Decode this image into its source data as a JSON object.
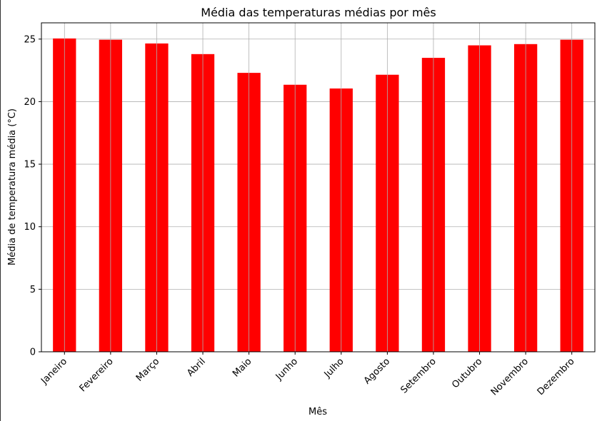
{
  "chart_data": {
    "type": "bar",
    "title": "Média das temperaturas médias por mês",
    "xlabel": "Mês",
    "ylabel": "Média de temperatura média (°C)",
    "categories": [
      "Janeiro",
      "Fevereiro",
      "Março",
      "Abril",
      "Maio",
      "Junho",
      "Julho",
      "Agosto",
      "Setembro",
      "Outubro",
      "Novembro",
      "Dezembro"
    ],
    "values": [
      25.05,
      24.95,
      24.65,
      23.8,
      22.3,
      21.35,
      21.05,
      22.15,
      23.5,
      24.5,
      24.6,
      24.95
    ],
    "ylim": [
      0,
      26.3
    ],
    "yticks": [
      0,
      5,
      10,
      15,
      20,
      25
    ],
    "grid": true,
    "bar_color": "#ff0000",
    "xtick_rotation_deg": 45
  }
}
